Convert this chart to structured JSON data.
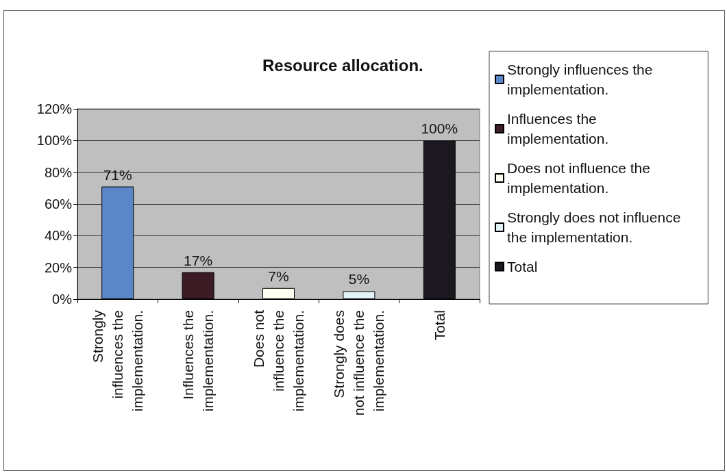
{
  "chart_data": {
    "type": "bar",
    "title": "Resource allocation.",
    "categories": [
      "Strongly influences the implementation.",
      "Influences the implementation.",
      "Does not influence the implementation.",
      "Strongly does not influence the implementation.",
      "Total"
    ],
    "series": [
      {
        "name": "Strongly influences the implementation.",
        "color": "#5b87c9",
        "values": [
          71,
          null,
          null,
          null,
          null
        ],
        "value_labels": [
          "71%",
          null,
          null,
          null,
          null
        ]
      },
      {
        "name": "Influences the implementation.",
        "color": "#3b1c24",
        "values": [
          null,
          17,
          null,
          null,
          null
        ],
        "value_labels": [
          null,
          "17%",
          null,
          null,
          null
        ]
      },
      {
        "name": "Does not influence the implementation.",
        "color": "#fffff2",
        "values": [
          null,
          null,
          7,
          null,
          null
        ],
        "value_labels": [
          null,
          null,
          "7%",
          null,
          null
        ]
      },
      {
        "name": "Strongly does not influence the implementation.",
        "color": "#e2f3f7",
        "values": [
          null,
          null,
          null,
          5,
          null
        ],
        "value_labels": [
          null,
          null,
          null,
          "5%",
          null
        ]
      },
      {
        "name": "Total",
        "color": "#1c1820",
        "values": [
          null,
          null,
          null,
          null,
          100
        ],
        "value_labels": [
          null,
          null,
          null,
          null,
          "100%"
        ]
      }
    ],
    "ylim": [
      0,
      120
    ],
    "yticks": [
      {
        "value": 0,
        "label": "0%"
      },
      {
        "value": 20,
        "label": "20%"
      },
      {
        "value": 40,
        "label": "40%"
      },
      {
        "value": 60,
        "label": "60%"
      },
      {
        "value": 80,
        "label": "80%"
      },
      {
        "value": 100,
        "label": "100%"
      },
      {
        "value": 120,
        "label": "120%"
      }
    ],
    "grid": "y",
    "legend": "right"
  }
}
